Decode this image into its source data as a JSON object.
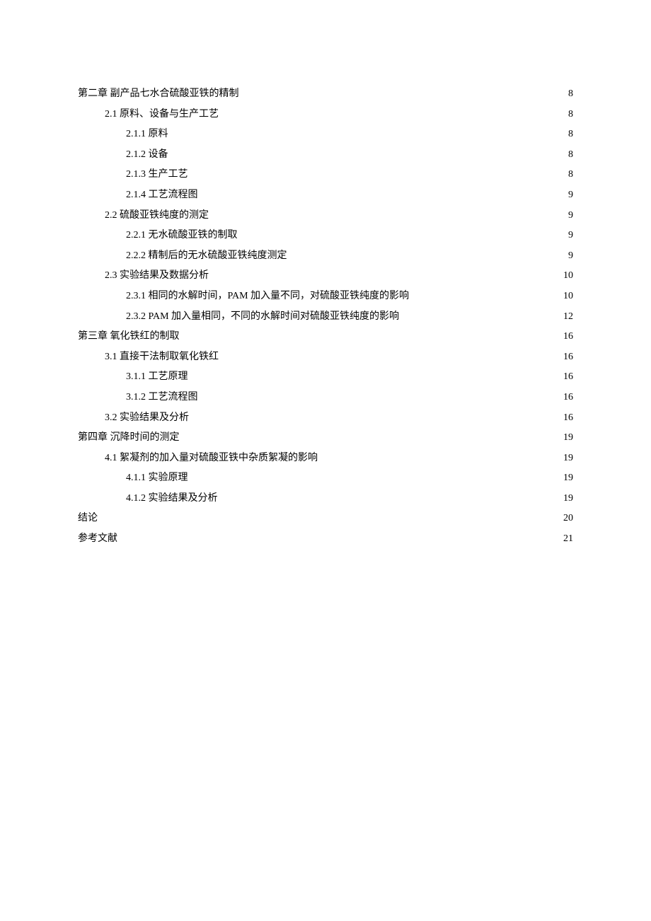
{
  "toc": {
    "entries": [
      {
        "level": 1,
        "label": "第二章 副产品七水合硫酸亚铁的精制",
        "page": "8"
      },
      {
        "level": 2,
        "label": "2.1 原料、设备与生产工艺",
        "page": "8"
      },
      {
        "level": 3,
        "label": "2.1.1 原料",
        "page": "8"
      },
      {
        "level": 3,
        "label": "2.1.2 设备",
        "page": "8"
      },
      {
        "level": 3,
        "label": "2.1.3 生产工艺",
        "page": "8"
      },
      {
        "level": 3,
        "label": "2.1.4 工艺流程图",
        "page": "9"
      },
      {
        "level": 2,
        "label": "2.2 硫酸亚铁纯度的测定",
        "page": "9"
      },
      {
        "level": 3,
        "label": "2.2.1 无水硫酸亚铁的制取",
        "page": "9"
      },
      {
        "level": 3,
        "label": "2.2.2 精制后的无水硫酸亚铁纯度测定",
        "page": "9"
      },
      {
        "level": 2,
        "label": "2.3 实验结果及数据分析",
        "page": "10"
      },
      {
        "level": 3,
        "label": "2.3.1 相同的水解时间，PAM 加入量不同，对硫酸亚铁纯度的影响",
        "page": "10"
      },
      {
        "level": 3,
        "label": "2.3.2 PAM 加入量相同，不同的水解时间对硫酸亚铁纯度的影响",
        "page": "12"
      },
      {
        "level": 1,
        "label": "第三章 氧化铁红的制取",
        "page": "16"
      },
      {
        "level": 2,
        "label": "3.1 直接干法制取氧化铁红",
        "page": "16"
      },
      {
        "level": 3,
        "label": "3.1.1 工艺原理",
        "page": "16"
      },
      {
        "level": 3,
        "label": "3.1.2 工艺流程图",
        "page": "16"
      },
      {
        "level": 2,
        "label": "3.2 实验结果及分析",
        "page": "16"
      },
      {
        "level": 1,
        "label": "第四章 沉降时间的测定",
        "page": "19"
      },
      {
        "level": 2,
        "label": "4.1 絮凝剂的加入量对硫酸亚铁中杂质絮凝的影响",
        "page": "19"
      },
      {
        "level": 3,
        "label": "4.1.1 实验原理",
        "page": "19"
      },
      {
        "level": 3,
        "label": "4.1.2 实验结果及分析",
        "page": "19"
      },
      {
        "level": 1,
        "label": "结论",
        "page": "20"
      },
      {
        "level": 1,
        "label": "参考文献",
        "page": "21"
      }
    ]
  }
}
